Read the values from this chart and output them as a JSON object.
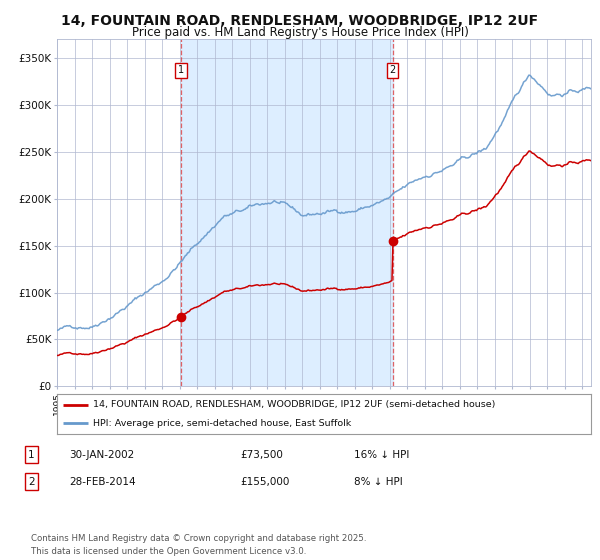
{
  "title": "14, FOUNTAIN ROAD, RENDLESHAM, WOODBRIDGE, IP12 2UF",
  "subtitle": "Price paid vs. HM Land Registry's House Price Index (HPI)",
  "title_fontsize": 10,
  "subtitle_fontsize": 8.5,
  "background_color": "#ffffff",
  "plot_bg_color": "#ffffff",
  "shaded_region_color": "#ddeeff",
  "grid_color": "#b0b8d0",
  "red_line_color": "#cc0000",
  "blue_line_color": "#6699cc",
  "ylim": [
    0,
    370000
  ],
  "yticks": [
    0,
    50000,
    100000,
    150000,
    200000,
    250000,
    300000,
    350000
  ],
  "ytick_labels": [
    "£0",
    "£50K",
    "£100K",
    "£150K",
    "£200K",
    "£250K",
    "£300K",
    "£350K"
  ],
  "sale1_date_num": 2002.08,
  "sale1_price": 73500,
  "sale1_label": "1",
  "sale2_date_num": 2014.17,
  "sale2_price": 155000,
  "sale2_label": "2",
  "legend_line1": "14, FOUNTAIN ROAD, RENDLESHAM, WOODBRIDGE, IP12 2UF (semi-detached house)",
  "legend_line2": "HPI: Average price, semi-detached house, East Suffolk",
  "table_row1": [
    "1",
    "30-JAN-2002",
    "£73,500",
    "16% ↓ HPI"
  ],
  "table_row2": [
    "2",
    "28-FEB-2014",
    "£155,000",
    "8% ↓ HPI"
  ],
  "footnote": "Contains HM Land Registry data © Crown copyright and database right 2025.\nThis data is licensed under the Open Government Licence v3.0.",
  "xmin": 1995.0,
  "xmax": 2025.5
}
